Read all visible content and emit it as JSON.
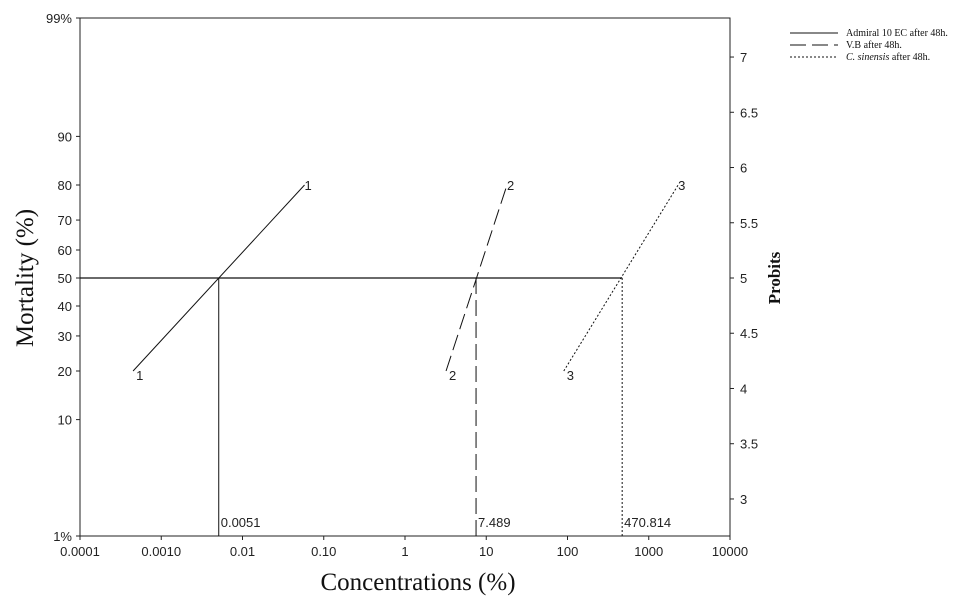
{
  "chart_data": {
    "type": "line",
    "title": "",
    "xlabel": "Concentrations (%)",
    "ylabel": "Mortality (%)",
    "y2label": "Probits",
    "x_scale": "log",
    "xlim": [
      0.0001,
      10000
    ],
    "x_ticks": [
      {
        "value": 0.0001,
        "label": "0.0001"
      },
      {
        "value": 0.001,
        "label": "0.0010"
      },
      {
        "value": 0.01,
        "label": "0.01"
      },
      {
        "value": 0.1,
        "label": "0.10"
      },
      {
        "value": 1,
        "label": "1"
      },
      {
        "value": 10,
        "label": "10"
      },
      {
        "value": 100,
        "label": "100"
      },
      {
        "value": 1000,
        "label": "1000"
      },
      {
        "value": 10000,
        "label": "10000"
      }
    ],
    "y_scale": "probit",
    "ylim": [
      1,
      99
    ],
    "y_ticks": [
      {
        "value": 1,
        "label": "1%"
      },
      {
        "value": 10,
        "label": "10"
      },
      {
        "value": 20,
        "label": "20"
      },
      {
        "value": 30,
        "label": "30"
      },
      {
        "value": 40,
        "label": "40"
      },
      {
        "value": 50,
        "label": "50"
      },
      {
        "value": 60,
        "label": "60"
      },
      {
        "value": 70,
        "label": "70"
      },
      {
        "value": 80,
        "label": "80"
      },
      {
        "value": 90,
        "label": "90"
      },
      {
        "value": 99,
        "label": "99%"
      }
    ],
    "probit_ticks": [
      {
        "value": 3,
        "label": "3"
      },
      {
        "value": 3.5,
        "label": "3.5"
      },
      {
        "value": 4,
        "label": "4"
      },
      {
        "value": 4.5,
        "label": "4.5"
      },
      {
        "value": 5,
        "label": "5"
      },
      {
        "value": 5.5,
        "label": "5.5"
      },
      {
        "value": 6,
        "label": "6"
      },
      {
        "value": 6.5,
        "label": "6.5"
      },
      {
        "value": 7,
        "label": "7"
      }
    ],
    "reference_y": 50,
    "series": [
      {
        "name": "Admiral 10 EC after 48h.",
        "name_italic": false,
        "style": "solid",
        "marker": "1",
        "x": [
          0.00045,
          0.058
        ],
        "y": [
          20,
          80
        ],
        "lc50": 0.0051,
        "lc50_label": "0.0051"
      },
      {
        "name": "V.B after 48h.",
        "name_italic": false,
        "style": "dashed",
        "marker": "2",
        "x": [
          3.2,
          18
        ],
        "y": [
          20,
          80
        ],
        "lc50": 7.489,
        "lc50_label": "7.489"
      },
      {
        "name": "after 48h.",
        "name_italic": "C. sinensis",
        "style": "dotted",
        "marker": "3",
        "x": [
          90,
          2300
        ],
        "y": [
          20,
          80
        ],
        "lc50": 470.814,
        "lc50_label": "470.814"
      }
    ],
    "legend": "top-right",
    "grid": false
  }
}
